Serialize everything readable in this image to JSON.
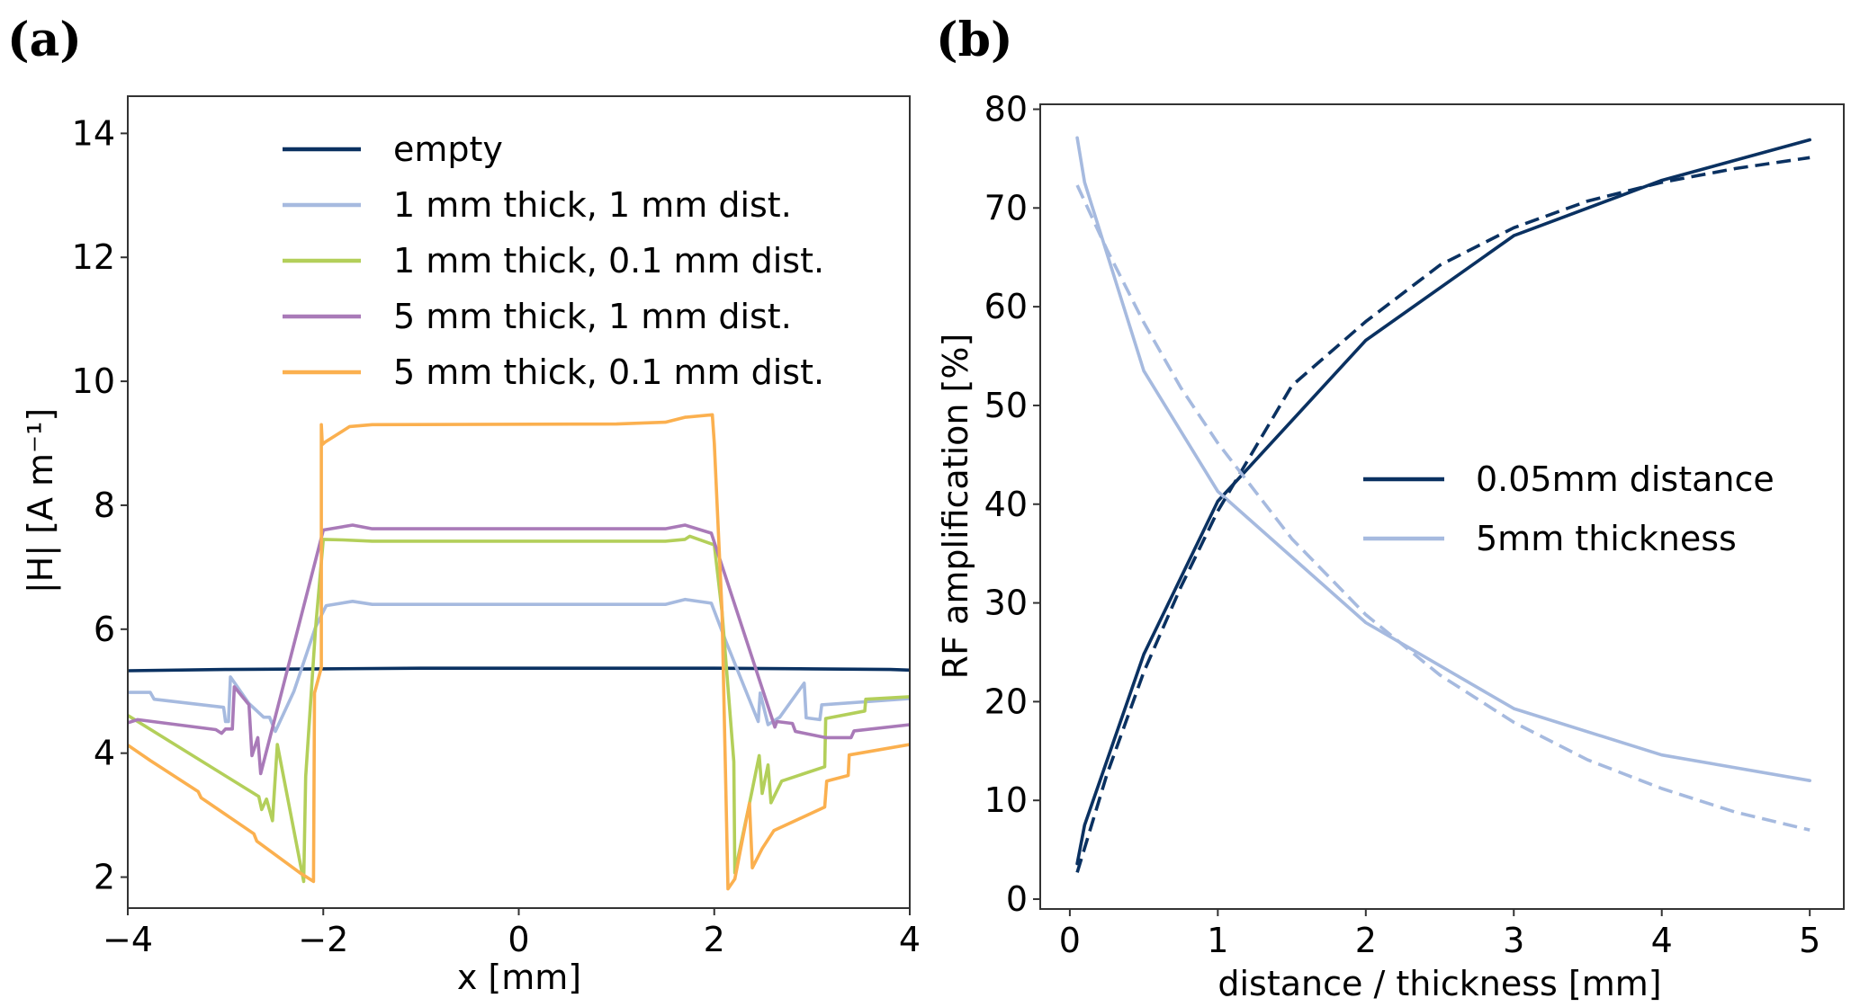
{
  "chart_data": [
    {
      "panel_label": "(a)",
      "type": "line",
      "title": "",
      "xlabel": "x [mm]",
      "ylabel": "|H| [A m⁻¹]",
      "xlim": [
        -4,
        4
      ],
      "ylim": [
        1.5,
        14.6
      ],
      "xticks": [
        -4,
        -2,
        0,
        2,
        4
      ],
      "xtick_labels": [
        "−4",
        "−2",
        "0",
        "2",
        "4"
      ],
      "yticks": [
        2,
        4,
        6,
        8,
        10,
        12,
        14
      ],
      "ytick_labels": [
        "2",
        "4",
        "6",
        "8",
        "10",
        "12",
        "14"
      ],
      "grid": false,
      "legend_position": "top-center",
      "series": [
        {
          "name": "empty",
          "color": "#0a3161",
          "style": "solid",
          "x": [
            -4,
            -3,
            -2,
            -1,
            0,
            1,
            2,
            3,
            3.8,
            4
          ],
          "y": [
            5.33,
            5.35,
            5.36,
            5.37,
            5.37,
            5.37,
            5.37,
            5.36,
            5.35,
            5.34
          ]
        },
        {
          "name": "1 mm thick, 1 mm dist.",
          "color": "#a6badf",
          "style": "solid",
          "x": [
            -4,
            -3.77,
            -3.73,
            -3.02,
            -3.0,
            -2.97,
            -2.95,
            -2.76,
            -2.61,
            -2.55,
            -2.49,
            -2.3,
            -2.08,
            -1.97,
            -1.7,
            -1.5,
            1.5,
            1.7,
            1.97,
            2.12,
            2.45,
            2.47,
            2.55,
            2.67,
            2.92,
            2.94,
            3.08,
            3.1,
            4
          ],
          "y": [
            4.98,
            4.98,
            4.87,
            4.74,
            4.51,
            4.51,
            5.23,
            4.8,
            4.58,
            4.58,
            4.35,
            5.0,
            6.03,
            6.38,
            6.45,
            6.4,
            6.4,
            6.48,
            6.42,
            5.8,
            4.51,
            4.97,
            4.46,
            4.58,
            5.13,
            4.57,
            4.54,
            4.78,
            4.88
          ]
        },
        {
          "name": "1 mm thick, 0.1 mm dist.",
          "color": "#b3cf5a",
          "style": "solid",
          "x": [
            -4,
            -2.66,
            -2.63,
            -2.58,
            -2.52,
            -2.47,
            -2.2,
            -2.18,
            -2.08,
            -2.0,
            -1.8,
            -1.5,
            1.5,
            1.7,
            1.75,
            2.0,
            2.08,
            2.2,
            2.21,
            2.36,
            2.46,
            2.49,
            2.55,
            2.58,
            2.69,
            3.13,
            3.14,
            3.54,
            3.55,
            4
          ],
          "y": [
            4.61,
            3.3,
            3.09,
            3.26,
            2.91,
            4.14,
            1.93,
            3.62,
            6.0,
            7.45,
            7.44,
            7.42,
            7.42,
            7.45,
            7.5,
            7.36,
            6.28,
            3.86,
            2.07,
            3.19,
            3.96,
            3.35,
            3.81,
            3.2,
            3.55,
            3.78,
            4.56,
            4.68,
            4.87,
            4.91
          ]
        },
        {
          "name": "5 mm thick, 1 mm dist.",
          "color": "#a97ab8",
          "style": "solid",
          "x": [
            -4,
            -3.9,
            -3.1,
            -3.04,
            -3.0,
            -2.93,
            -2.91,
            -2.76,
            -2.73,
            -2.67,
            -2.64,
            -2.0,
            -1.7,
            -1.5,
            1.5,
            1.7,
            1.97,
            2.62,
            2.64,
            2.8,
            2.83,
            3.14,
            3.4,
            3.43,
            4
          ],
          "y": [
            4.49,
            4.54,
            4.38,
            4.32,
            4.39,
            4.39,
            5.07,
            4.78,
            3.96,
            4.25,
            3.67,
            7.6,
            7.68,
            7.62,
            7.62,
            7.68,
            7.55,
            4.42,
            4.51,
            4.48,
            4.35,
            4.25,
            4.25,
            4.36,
            4.46
          ]
        },
        {
          "name": "5 mm thick, 0.1 mm dist.",
          "color": "#fbb04f",
          "style": "solid",
          "x": [
            -4,
            -3.77,
            -3.28,
            -3.25,
            -2.71,
            -2.68,
            -2.24,
            -2.1,
            -2.09,
            -2.02,
            -2.02,
            -2.01,
            -1.98,
            -1.73,
            -1.5,
            1.0,
            1.5,
            1.7,
            1.98,
            2.0,
            2.08,
            2.14,
            2.21,
            2.36,
            2.39,
            2.49,
            2.61,
            3.13,
            3.15,
            3.37,
            3.38,
            4
          ],
          "y": [
            4.13,
            3.88,
            3.38,
            3.28,
            2.7,
            2.58,
            2.07,
            1.93,
            4.97,
            5.38,
            9.3,
            8.98,
            9.02,
            9.27,
            9.3,
            9.31,
            9.34,
            9.42,
            9.46,
            9.0,
            6.28,
            1.81,
            1.97,
            3.19,
            2.15,
            2.46,
            2.75,
            3.13,
            3.55,
            3.64,
            3.97,
            4.14
          ]
        }
      ]
    },
    {
      "panel_label": "(b)",
      "type": "line",
      "title": "",
      "xlabel": "distance / thickness [mm]",
      "ylabel": "RF amplification [%]",
      "xlim": [
        -0.2,
        5.23
      ],
      "ylim": [
        -1,
        80.5
      ],
      "xticks": [
        0,
        1,
        2,
        3,
        4,
        5
      ],
      "xtick_labels": [
        "0",
        "1",
        "2",
        "3",
        "4",
        "5"
      ],
      "yticks": [
        0,
        10,
        20,
        30,
        40,
        50,
        60,
        70,
        80
      ],
      "ytick_labels": [
        "0",
        "10",
        "20",
        "30",
        "40",
        "50",
        "60",
        "70",
        "80"
      ],
      "grid": false,
      "legend_position": "center-right",
      "series": [
        {
          "name": "0.05mm distance",
          "color": "#0a3161",
          "style": "solid",
          "in_legend": true,
          "x": [
            0.05,
            0.1,
            0.5,
            1,
            2,
            3,
            4,
            5
          ],
          "y": [
            3.6,
            7.5,
            24.8,
            40.3,
            56.6,
            67.2,
            72.8,
            76.9
          ]
        },
        {
          "name": "5mm thickness",
          "color": "#a6badf",
          "style": "solid",
          "in_legend": true,
          "x": [
            0.05,
            0.1,
            0.5,
            1,
            2,
            3,
            4,
            5
          ],
          "y": [
            77.1,
            72.6,
            53.5,
            41.3,
            28.0,
            19.3,
            14.6,
            12.0
          ]
        },
        {
          "name": "0.05mm distance fit",
          "color": "#0a3161",
          "style": "dashed",
          "in_legend": false,
          "x": [
            0.05,
            0.25,
            0.5,
            0.75,
            1,
            1.5,
            2,
            2.5,
            3,
            3.5,
            4,
            4.5,
            5
          ],
          "y": [
            2.7,
            12.6,
            23.0,
            31.6,
            39.3,
            52.0,
            58.5,
            64.2,
            68.0,
            70.7,
            72.6,
            74.0,
            75.1
          ]
        },
        {
          "name": "5mm thickness fit",
          "color": "#a6badf",
          "style": "dashed",
          "in_legend": false,
          "x": [
            0.05,
            0.25,
            0.5,
            0.75,
            1,
            1.5,
            2,
            2.5,
            3,
            3.5,
            4,
            4.5,
            5
          ],
          "y": [
            72.3,
            65.8,
            58.4,
            51.8,
            46.2,
            36.5,
            28.8,
            22.7,
            17.9,
            14.1,
            11.2,
            8.8,
            7.0
          ]
        }
      ]
    }
  ]
}
